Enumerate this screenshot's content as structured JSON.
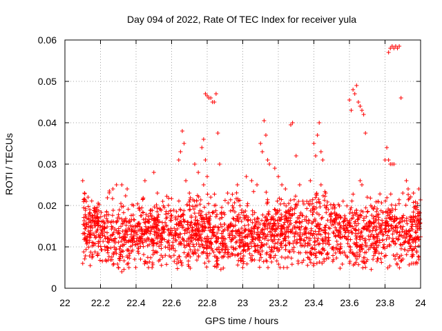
{
  "chart_data": {
    "type": "scatter",
    "title": "Day 094 of 2022, Rate Of TEC Index for receiver yula",
    "xlabel": "GPS time / hours",
    "ylabel": "ROTI / TECUs",
    "xlim": [
      22,
      24
    ],
    "ylim": [
      0,
      0.06
    ],
    "xticks": [
      22,
      22.2,
      22.4,
      22.6,
      22.8,
      23,
      23.2,
      23.4,
      23.6,
      23.8,
      24
    ],
    "xtick_labels": [
      "22",
      "22.2",
      "22.4",
      "22.6",
      "22.8",
      "23",
      "23.2",
      "23.4",
      "23.6",
      "23.8",
      "24"
    ],
    "yticks": [
      0,
      0.01,
      0.02,
      0.03,
      0.04,
      0.05,
      0.06
    ],
    "ytick_labels": [
      "0",
      "0.01",
      "0.02",
      "0.03",
      "0.04",
      "0.05",
      "0.06"
    ],
    "grid": true,
    "marker": "+",
    "color": "#ff0000",
    "series": [
      {
        "name": "ROTI",
        "points": [
          [
            22.1,
            0.026
          ],
          [
            22.1,
            0.006
          ],
          [
            22.11,
            0.023
          ],
          [
            22.12,
            0.021
          ],
          [
            22.13,
            0.022
          ],
          [
            22.14,
            0.019
          ],
          [
            22.25,
            0.0235
          ],
          [
            22.27,
            0.024
          ],
          [
            22.29,
            0.025
          ],
          [
            22.32,
            0.025
          ],
          [
            22.35,
            0.024
          ],
          [
            22.3,
            0.005
          ],
          [
            22.32,
            0.004
          ],
          [
            22.36,
            0.005
          ],
          [
            22.47,
            0.005
          ],
          [
            22.49,
            0.005
          ],
          [
            22.45,
            0.026
          ],
          [
            22.5,
            0.028
          ],
          [
            22.52,
            0.023
          ],
          [
            22.55,
            0.021
          ],
          [
            22.64,
            0.031
          ],
          [
            22.65,
            0.033
          ],
          [
            22.66,
            0.038
          ],
          [
            22.67,
            0.035
          ],
          [
            22.68,
            0.026
          ],
          [
            22.7,
            0.023
          ],
          [
            22.73,
            0.03
          ],
          [
            22.75,
            0.028
          ],
          [
            22.77,
            0.034
          ],
          [
            22.78,
            0.036
          ],
          [
            22.79,
            0.031
          ],
          [
            22.8,
            0.027
          ],
          [
            22.79,
            0.047
          ],
          [
            22.8,
            0.0465
          ],
          [
            22.81,
            0.046
          ],
          [
            22.82,
            0.046
          ],
          [
            22.83,
            0.045
          ],
          [
            22.84,
            0.045
          ],
          [
            22.85,
            0.047
          ],
          [
            22.86,
            0.0375
          ],
          [
            22.87,
            0.03
          ],
          [
            22.78,
            0.025
          ],
          [
            22.82,
            0.022
          ],
          [
            22.84,
            0.02
          ],
          [
            22.97,
            0.025
          ],
          [
            23.0,
            0.005
          ],
          [
            23.02,
            0.027
          ],
          [
            23.05,
            0.026
          ],
          [
            23.08,
            0.025
          ],
          [
            23.1,
            0.035
          ],
          [
            23.11,
            0.033
          ],
          [
            23.12,
            0.0405
          ],
          [
            23.13,
            0.037
          ],
          [
            23.14,
            0.031
          ],
          [
            23.15,
            0.03
          ],
          [
            23.18,
            0.029
          ],
          [
            23.2,
            0.027
          ],
          [
            23.22,
            0.025
          ],
          [
            23.24,
            0.024
          ],
          [
            23.21,
            0.005
          ],
          [
            23.23,
            0.005
          ],
          [
            23.25,
            0.005
          ],
          [
            23.27,
            0.0395
          ],
          [
            23.28,
            0.04
          ],
          [
            23.3,
            0.032
          ],
          [
            23.32,
            0.025
          ],
          [
            23.36,
            0.021
          ],
          [
            23.38,
            0.026
          ],
          [
            23.4,
            0.035
          ],
          [
            23.41,
            0.032
          ],
          [
            23.42,
            0.037
          ],
          [
            23.43,
            0.04
          ],
          [
            23.44,
            0.033
          ],
          [
            23.45,
            0.031
          ],
          [
            23.44,
            0.025
          ],
          [
            23.46,
            0.02
          ],
          [
            23.6,
            0.0455
          ],
          [
            23.61,
            0.043
          ],
          [
            23.62,
            0.048
          ],
          [
            23.63,
            0.047
          ],
          [
            23.64,
            0.049
          ],
          [
            23.65,
            0.045
          ],
          [
            23.66,
            0.044
          ],
          [
            23.67,
            0.043
          ],
          [
            23.68,
            0.042
          ],
          [
            23.69,
            0.0375
          ],
          [
            23.66,
            0.026
          ],
          [
            23.67,
            0.025
          ],
          [
            23.7,
            0.022
          ],
          [
            23.72,
            0.02
          ],
          [
            23.8,
            0.031
          ],
          [
            23.81,
            0.034
          ],
          [
            23.82,
            0.031
          ],
          [
            23.83,
            0.03
          ],
          [
            23.84,
            0.03
          ],
          [
            23.85,
            0.03
          ],
          [
            23.82,
            0.057
          ],
          [
            23.83,
            0.058
          ],
          [
            23.84,
            0.0585
          ],
          [
            23.85,
            0.058
          ],
          [
            23.86,
            0.0585
          ],
          [
            23.87,
            0.058
          ],
          [
            23.88,
            0.0585
          ],
          [
            23.89,
            0.046
          ],
          [
            23.9,
            0.023
          ],
          [
            23.92,
            0.026
          ],
          [
            23.93,
            0.024
          ],
          [
            23.96,
            0.023
          ],
          [
            23.99,
            0.024
          ],
          [
            23.95,
            0.006
          ],
          [
            23.96,
            0.006
          ],
          [
            23.97,
            0.006
          ],
          [
            23.98,
            0.006
          ],
          [
            23.99,
            0.007
          ]
        ]
      }
    ]
  }
}
